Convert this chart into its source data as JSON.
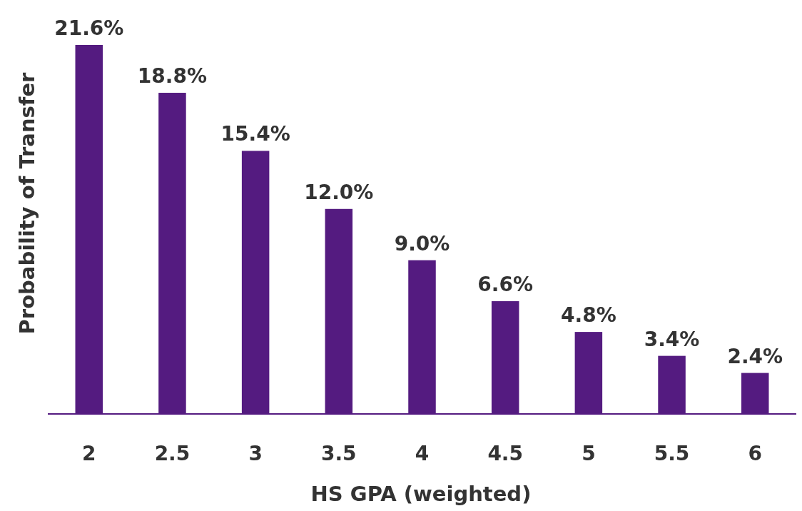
{
  "chart_data": {
    "type": "bar",
    "xlabel": "HS GPA (weighted)",
    "ylabel": "Probability of Transfer",
    "categories": [
      "2",
      "2.5",
      "3",
      "3.5",
      "4",
      "4.5",
      "5",
      "5.5",
      "6"
    ],
    "values": [
      21.6,
      18.8,
      15.4,
      12.0,
      9.0,
      6.6,
      4.8,
      3.4,
      2.4
    ],
    "value_labels": [
      "21.6%",
      "18.8%",
      "15.4%",
      "12.0%",
      "9.0%",
      "6.6%",
      "4.8%",
      "3.4%",
      "2.4%"
    ],
    "color": "#541b80",
    "tick_labels": "x"
  }
}
